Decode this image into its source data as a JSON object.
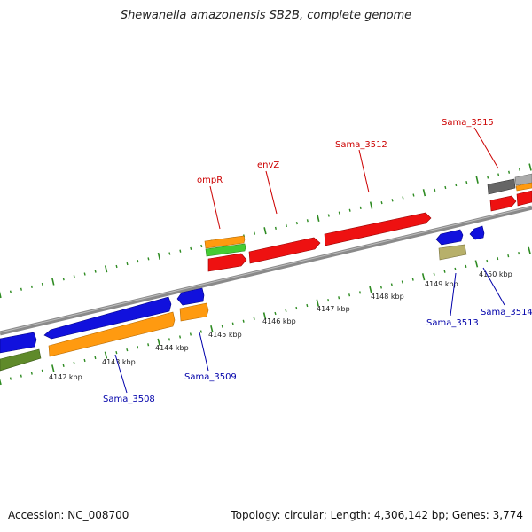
{
  "title": "Shewanella amazonensis SB2B, complete genome",
  "footer": {
    "accession": "Accession: NC_008700",
    "topology": "Topology: circular; Length: 4,306,142 bp; Genes: 3,774"
  },
  "colors": {
    "backbone": "#8a8a8a",
    "tick": "#2e8b22",
    "top_label": "#cc0000",
    "bottom_label": "#0000aa",
    "red": "#ee1111",
    "blue": "#1111dd",
    "orange": "#ff9a10",
    "green": "#44cc33",
    "olive": "#5f8a2a",
    "khaki": "#b7b06a",
    "gray": "#666666"
  },
  "scale_labels": [
    "4142 kbp",
    "4143 kbp",
    "4144 kbp",
    "4145 kbp",
    "4146 kbp",
    "4147 kbp",
    "4148 kbp",
    "4149 kbp",
    "4150 kbp"
  ],
  "top_labels": [
    "ompR",
    "envZ",
    "Sama_3512",
    "Sama_3515"
  ],
  "bottom_labels": [
    "Sama_3508",
    "Sama_3509",
    "Sama_3513",
    "Sama_3514"
  ]
}
